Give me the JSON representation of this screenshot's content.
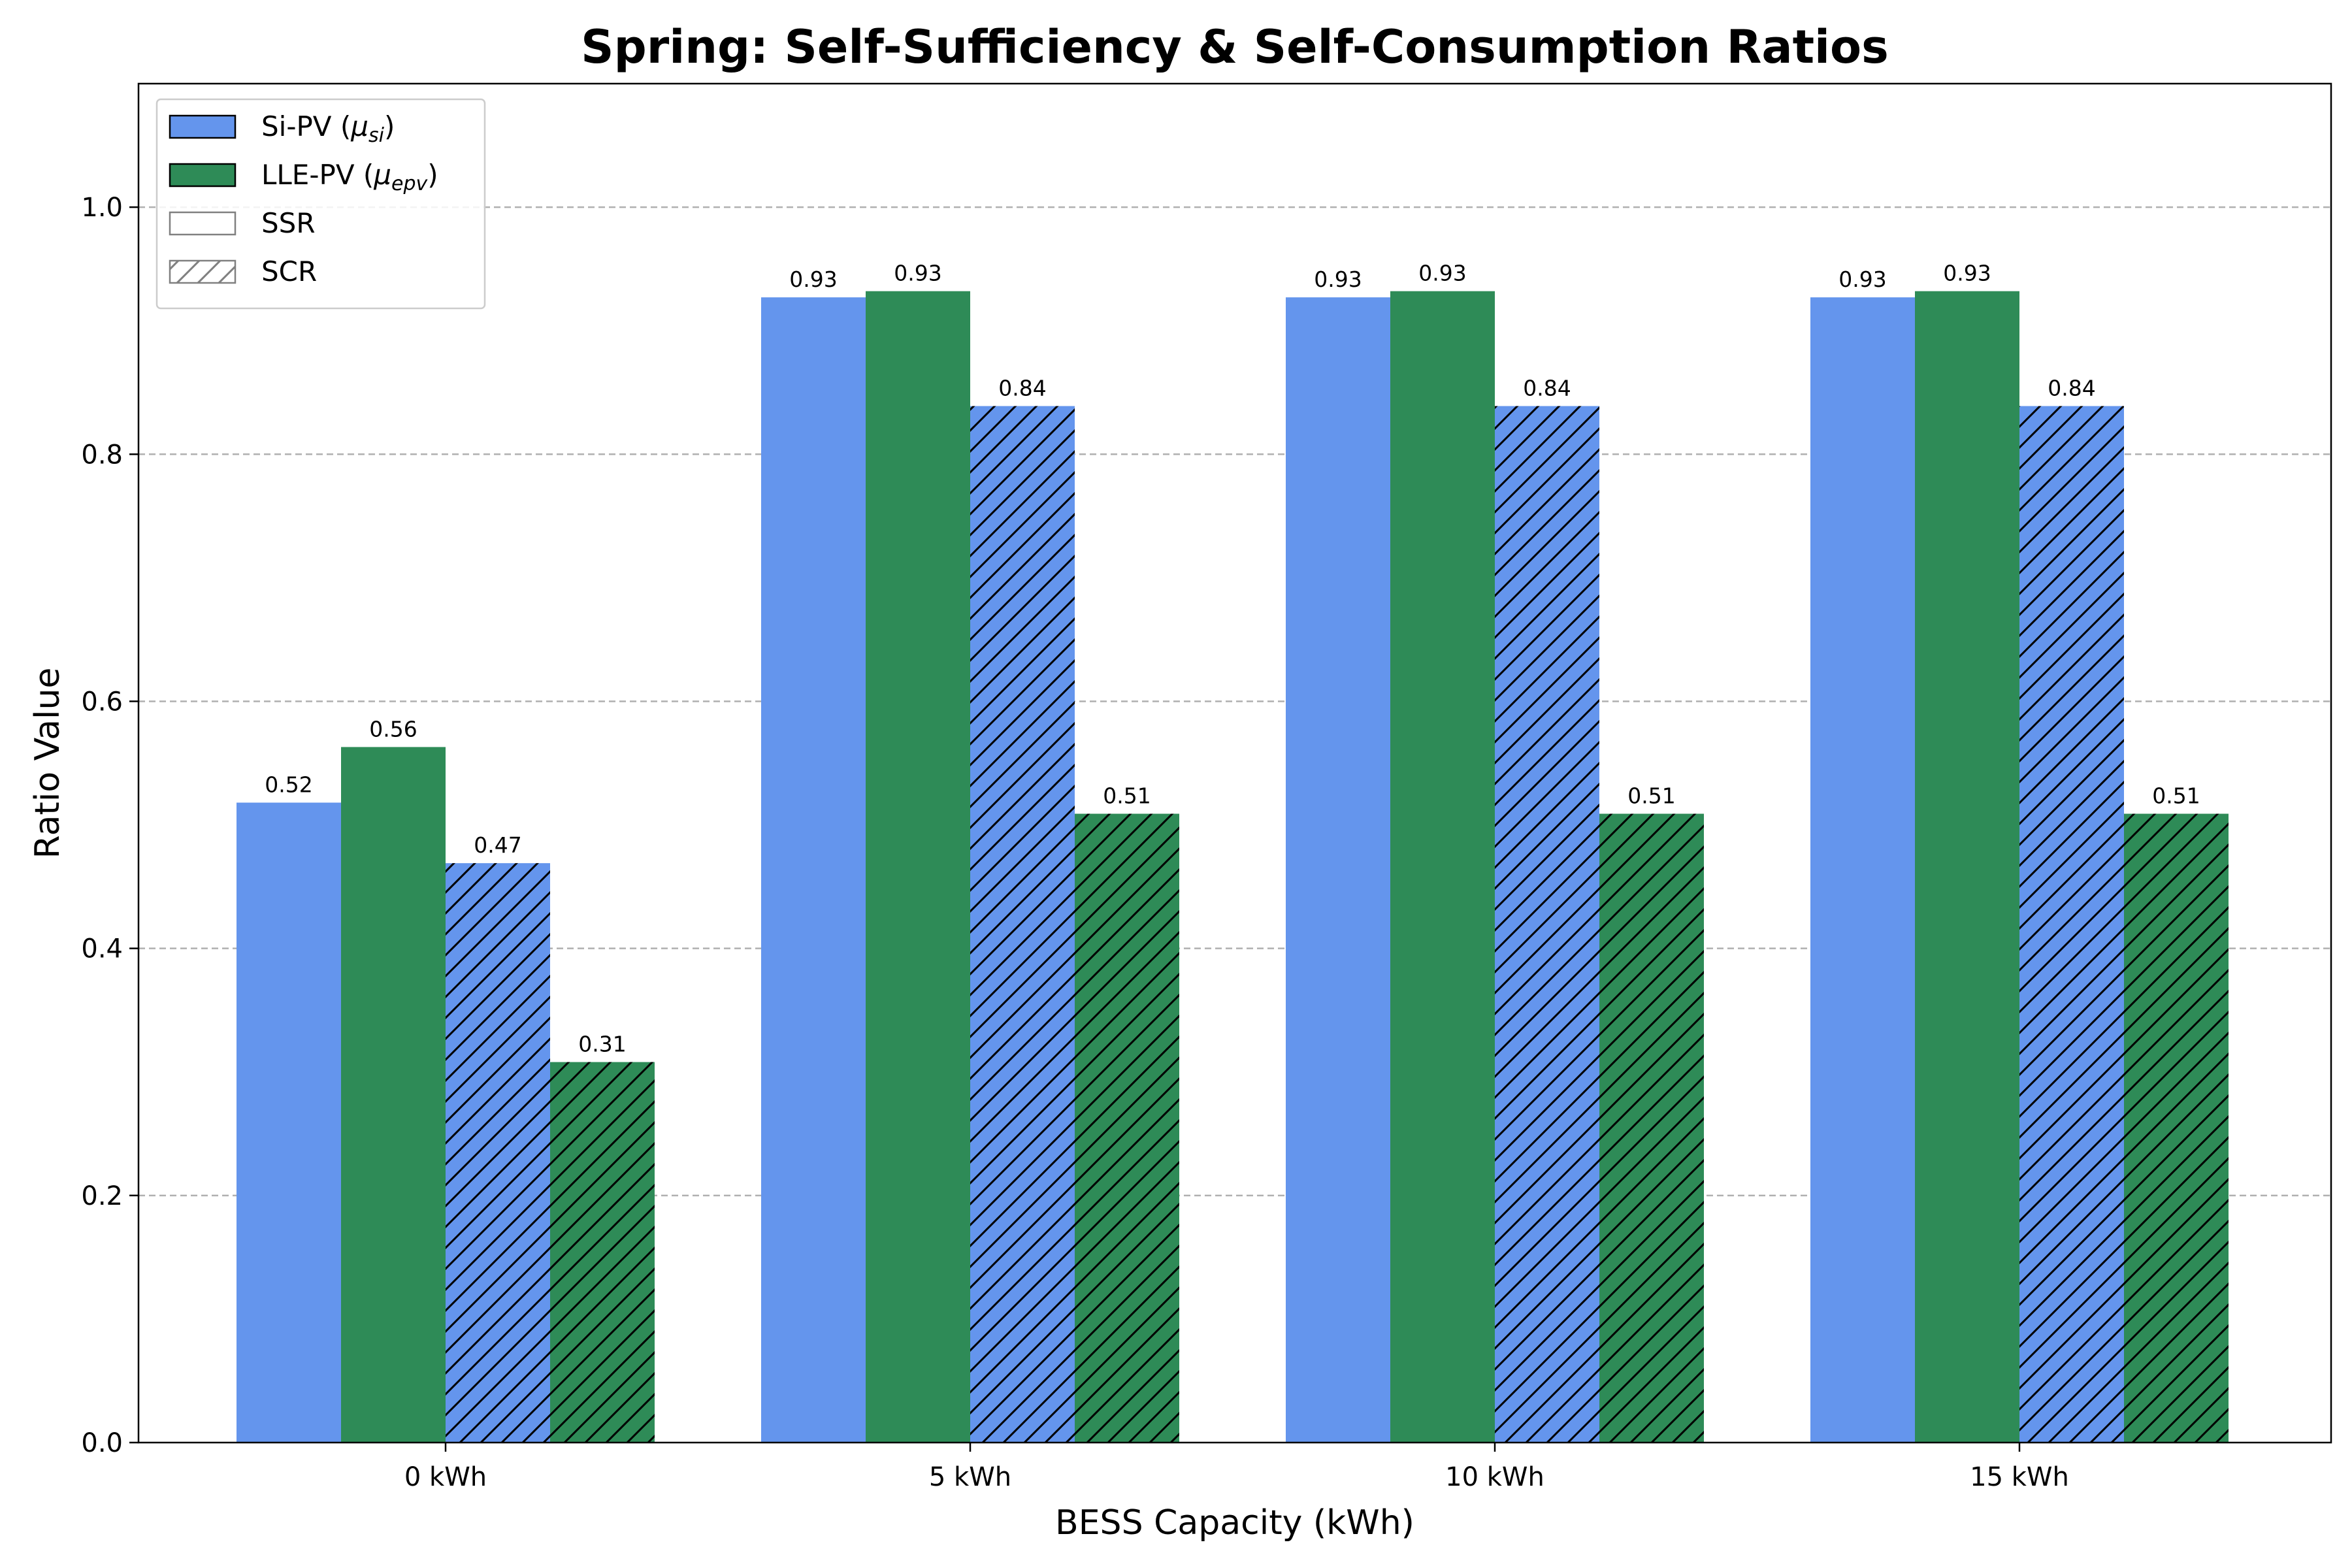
{
  "chart_data": {
    "type": "bar",
    "title": "Spring: Self-Sufficiency & Self-Consumption Ratios",
    "xlabel": "BESS Capacity (kWh)",
    "ylabel": "Ratio Value",
    "categories": [
      "0 kWh",
      "5 kWh",
      "10 kWh",
      "15 kWh"
    ],
    "ylim": [
      0,
      1.1
    ],
    "yticks": [
      "0.0",
      "0.2",
      "0.4",
      "0.6",
      "0.8",
      "1.0"
    ],
    "grid": "y-dashed",
    "legend_position": "top-left",
    "series": [
      {
        "name": "Si-PV SSR",
        "tech": "si",
        "metric": "SSR",
        "color": "#6495ED",
        "hatch": false,
        "values": [
          0.518,
          0.927,
          0.927,
          0.927
        ],
        "labels": [
          "0.52",
          "0.93",
          "0.93",
          "0.93"
        ]
      },
      {
        "name": "LLE-PV SSR",
        "tech": "epv",
        "metric": "SSR",
        "color": "#2E8B57",
        "hatch": false,
        "values": [
          0.563,
          0.932,
          0.932,
          0.932
        ],
        "labels": [
          "0.56",
          "0.93",
          "0.93",
          "0.93"
        ]
      },
      {
        "name": "Si-PV SCR",
        "tech": "si",
        "metric": "SCR",
        "color": "#6495ED",
        "hatch": true,
        "values": [
          0.469,
          0.839,
          0.839,
          0.839
        ],
        "labels": [
          "0.47",
          "0.84",
          "0.84",
          "0.84"
        ]
      },
      {
        "name": "LLE-PV SCR",
        "tech": "epv",
        "metric": "SCR",
        "color": "#2E8B57",
        "hatch": true,
        "values": [
          0.308,
          0.509,
          0.509,
          0.509
        ],
        "labels": [
          "0.31",
          "0.51",
          "0.51",
          "0.51"
        ]
      }
    ],
    "legend": [
      {
        "text": "Si-PV (",
        "sym": "μ",
        "sub": "si",
        "close": ")",
        "color": "#6495ED",
        "hatch": false,
        "edge": "#000000"
      },
      {
        "text": "LLE-PV (",
        "sym": "μ",
        "sub": "epv",
        "close": ")",
        "color": "#2E8B57",
        "hatch": false,
        "edge": "#000000"
      },
      {
        "text": "SSR",
        "color": "#ffffff",
        "hatch": false,
        "edge": "#808080"
      },
      {
        "text": "SCR",
        "color": "#ffffff",
        "hatch": true,
        "edge": "#808080"
      }
    ]
  }
}
